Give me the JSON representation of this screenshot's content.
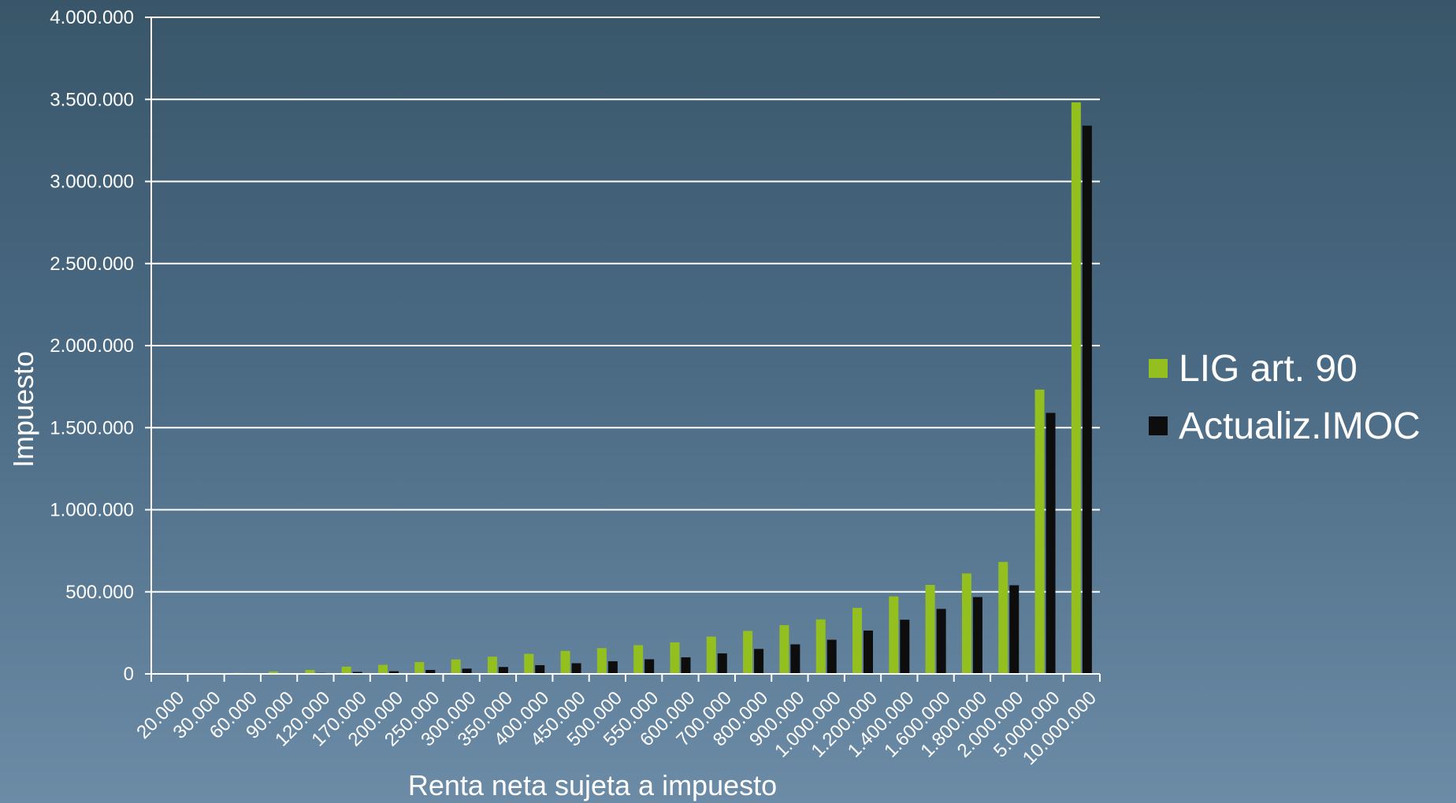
{
  "chart_data": {
    "type": "bar",
    "title": "",
    "xlabel": "Renta neta sujeta a impuesto",
    "ylabel": "Impuesto",
    "ylim": [
      0,
      4000000
    ],
    "yticks": [
      0,
      500000,
      1000000,
      1500000,
      2000000,
      2500000,
      3000000,
      3500000,
      4000000
    ],
    "ytick_labels": [
      "0",
      "500.000",
      "1.000.000",
      "1.500.000",
      "2.000.000",
      "2.500.000",
      "3.000.000",
      "3.500.000",
      "4.000.000"
    ],
    "grid": true,
    "legend_position": "right",
    "categories": [
      "20.000",
      "30.000",
      "60.000",
      "90.000",
      "120.000",
      "170.000",
      "200.000",
      "250.000",
      "300.000",
      "350.000",
      "400.000",
      "450.000",
      "500.000",
      "550.000",
      "600.000",
      "700.000",
      "800.000",
      "900.000",
      "1.000.000",
      "1.200.000",
      "1.400.000",
      "1.600.000",
      "1.800.000",
      "2.000.000",
      "5.000.000",
      "10.000.000"
    ],
    "series": [
      {
        "name": "LIG art. 90",
        "color": "#93c01f",
        "values": [
          1000,
          2000,
          6000,
          15000,
          24000,
          44000,
          55000,
          72000,
          88000,
          105000,
          122000,
          140000,
          157000,
          175000,
          192000,
          227000,
          262000,
          297000,
          332000,
          402000,
          472000,
          542000,
          612000,
          682000,
          1732000,
          3482000
        ]
      },
      {
        "name": "Actualiz.IMOC",
        "color": "#0d0d0d",
        "values": [
          0,
          0,
          1000,
          3000,
          6000,
          12000,
          16000,
          24000,
          32000,
          42000,
          53000,
          65000,
          77000,
          89000,
          101000,
          125000,
          152000,
          180000,
          208000,
          264000,
          330000,
          396000,
          468000,
          540000,
          1590000,
          3340000
        ]
      }
    ]
  }
}
